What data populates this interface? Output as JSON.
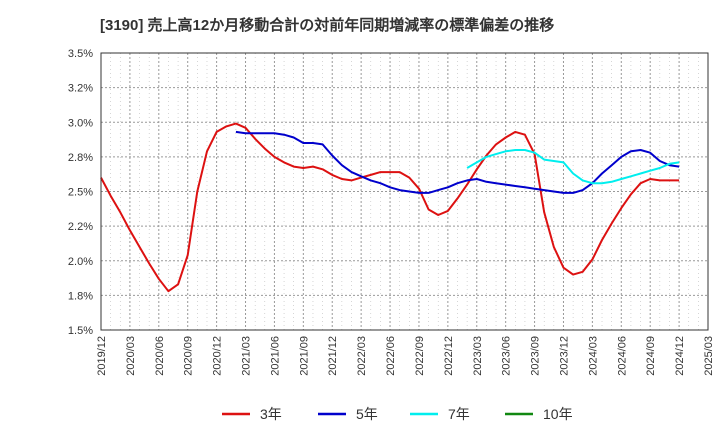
{
  "chart_data": {
    "type": "line",
    "title": "[3190]  売上高12か月移動合計の対前年同期増減率の標準偏差の推移",
    "xlabel": "",
    "ylabel": "",
    "ylim": [
      1.5,
      3.5
    ],
    "y_ticks": [
      "1.5%",
      "1.8%",
      "2.0%",
      "2.2%",
      "2.5%",
      "2.8%",
      "3.0%",
      "3.2%",
      "3.5%"
    ],
    "x_ticks": [
      "2019/12",
      "2020/03",
      "2020/06",
      "2020/09",
      "2020/12",
      "2021/03",
      "2021/06",
      "2021/09",
      "2021/12",
      "2022/03",
      "2022/06",
      "2022/09",
      "2022/12",
      "2023/03",
      "2023/06",
      "2023/09",
      "2023/12",
      "2024/03",
      "2024/06",
      "2024/09",
      "2024/12",
      "2025/03"
    ],
    "grid": true,
    "legend_position": "bottom",
    "series": [
      {
        "name": "3年",
        "color": "#dd1111",
        "points": [
          [
            "2019/12",
            2.6
          ],
          [
            "2020/01",
            2.47
          ],
          [
            "2020/02",
            2.35
          ],
          [
            "2020/03",
            2.22
          ],
          [
            "2020/04",
            2.1
          ],
          [
            "2020/05",
            1.98
          ],
          [
            "2020/06",
            1.87
          ],
          [
            "2020/07",
            1.78
          ],
          [
            "2020/08",
            1.83
          ],
          [
            "2020/09",
            2.04
          ],
          [
            "2020/10",
            2.5
          ],
          [
            "2020/11",
            2.79
          ],
          [
            "2020/12",
            2.93
          ],
          [
            "2021/01",
            2.97
          ],
          [
            "2021/02",
            2.99
          ],
          [
            "2021/03",
            2.96
          ],
          [
            "2021/04",
            2.88
          ],
          [
            "2021/05",
            2.81
          ],
          [
            "2021/06",
            2.75
          ],
          [
            "2021/07",
            2.71
          ],
          [
            "2021/08",
            2.68
          ],
          [
            "2021/09",
            2.67
          ],
          [
            "2021/10",
            2.68
          ],
          [
            "2021/11",
            2.66
          ],
          [
            "2021/12",
            2.62
          ],
          [
            "2022/01",
            2.59
          ],
          [
            "2022/02",
            2.58
          ],
          [
            "2022/03",
            2.6
          ],
          [
            "2022/04",
            2.62
          ],
          [
            "2022/05",
            2.64
          ],
          [
            "2022/06",
            2.64
          ],
          [
            "2022/07",
            2.64
          ],
          [
            "2022/08",
            2.6
          ],
          [
            "2022/09",
            2.52
          ],
          [
            "2022/10",
            2.37
          ],
          [
            "2022/11",
            2.33
          ],
          [
            "2022/12",
            2.36
          ],
          [
            "2023/01",
            2.45
          ],
          [
            "2023/02",
            2.55
          ],
          [
            "2023/03",
            2.66
          ],
          [
            "2023/04",
            2.76
          ],
          [
            "2023/05",
            2.84
          ],
          [
            "2023/06",
            2.89
          ],
          [
            "2023/07",
            2.93
          ],
          [
            "2023/08",
            2.91
          ],
          [
            "2023/09",
            2.77
          ],
          [
            "2023/10",
            2.35
          ],
          [
            "2023/11",
            2.1
          ],
          [
            "2023/12",
            1.95
          ],
          [
            "2024/01",
            1.9
          ],
          [
            "2024/02",
            1.92
          ],
          [
            "2024/03",
            2.01
          ],
          [
            "2024/04",
            2.15
          ],
          [
            "2024/05",
            2.27
          ],
          [
            "2024/06",
            2.38
          ],
          [
            "2024/07",
            2.48
          ],
          [
            "2024/08",
            2.56
          ],
          [
            "2024/09",
            2.59
          ],
          [
            "2024/10",
            2.58
          ],
          [
            "2024/11",
            2.58
          ],
          [
            "2024/12",
            2.58
          ]
        ]
      },
      {
        "name": "5年",
        "color": "#0000cc",
        "points": [
          [
            "2021/02",
            2.93
          ],
          [
            "2021/03",
            2.92
          ],
          [
            "2021/04",
            2.92
          ],
          [
            "2021/05",
            2.92
          ],
          [
            "2021/06",
            2.92
          ],
          [
            "2021/07",
            2.91
          ],
          [
            "2021/08",
            2.89
          ],
          [
            "2021/09",
            2.85
          ],
          [
            "2021/10",
            2.85
          ],
          [
            "2021/11",
            2.84
          ],
          [
            "2021/12",
            2.76
          ],
          [
            "2022/01",
            2.69
          ],
          [
            "2022/02",
            2.64
          ],
          [
            "2022/03",
            2.61
          ],
          [
            "2022/04",
            2.58
          ],
          [
            "2022/05",
            2.56
          ],
          [
            "2022/06",
            2.53
          ],
          [
            "2022/07",
            2.51
          ],
          [
            "2022/08",
            2.5
          ],
          [
            "2022/09",
            2.49
          ],
          [
            "2022/10",
            2.49
          ],
          [
            "2022/11",
            2.51
          ],
          [
            "2022/12",
            2.53
          ],
          [
            "2023/01",
            2.56
          ],
          [
            "2023/02",
            2.58
          ],
          [
            "2023/03",
            2.59
          ],
          [
            "2023/04",
            2.57
          ],
          [
            "2023/05",
            2.56
          ],
          [
            "2023/06",
            2.55
          ],
          [
            "2023/07",
            2.54
          ],
          [
            "2023/08",
            2.53
          ],
          [
            "2023/09",
            2.52
          ],
          [
            "2023/10",
            2.51
          ],
          [
            "2023/11",
            2.5
          ],
          [
            "2023/12",
            2.49
          ],
          [
            "2024/01",
            2.49
          ],
          [
            "2024/02",
            2.51
          ],
          [
            "2024/03",
            2.56
          ],
          [
            "2024/04",
            2.63
          ],
          [
            "2024/05",
            2.69
          ],
          [
            "2024/06",
            2.75
          ],
          [
            "2024/07",
            2.79
          ],
          [
            "2024/08",
            2.8
          ],
          [
            "2024/09",
            2.78
          ],
          [
            "2024/10",
            2.72
          ],
          [
            "2024/11",
            2.69
          ],
          [
            "2024/12",
            2.68
          ]
        ]
      },
      {
        "name": "7年",
        "color": "#00eeee",
        "points": [
          [
            "2023/02",
            2.67
          ],
          [
            "2023/03",
            2.71
          ],
          [
            "2023/04",
            2.75
          ],
          [
            "2023/05",
            2.77
          ],
          [
            "2023/06",
            2.79
          ],
          [
            "2023/07",
            2.8
          ],
          [
            "2023/08",
            2.8
          ],
          [
            "2023/09",
            2.78
          ],
          [
            "2023/10",
            2.73
          ],
          [
            "2023/11",
            2.72
          ],
          [
            "2023/12",
            2.71
          ],
          [
            "2024/01",
            2.63
          ],
          [
            "2024/02",
            2.58
          ],
          [
            "2024/03",
            2.56
          ],
          [
            "2024/04",
            2.56
          ],
          [
            "2024/05",
            2.57
          ],
          [
            "2024/06",
            2.59
          ],
          [
            "2024/07",
            2.61
          ],
          [
            "2024/08",
            2.63
          ],
          [
            "2024/09",
            2.65
          ],
          [
            "2024/10",
            2.67
          ],
          [
            "2024/11",
            2.7
          ],
          [
            "2024/12",
            2.71
          ]
        ]
      },
      {
        "name": "10年",
        "color": "#118811",
        "points": []
      }
    ]
  }
}
